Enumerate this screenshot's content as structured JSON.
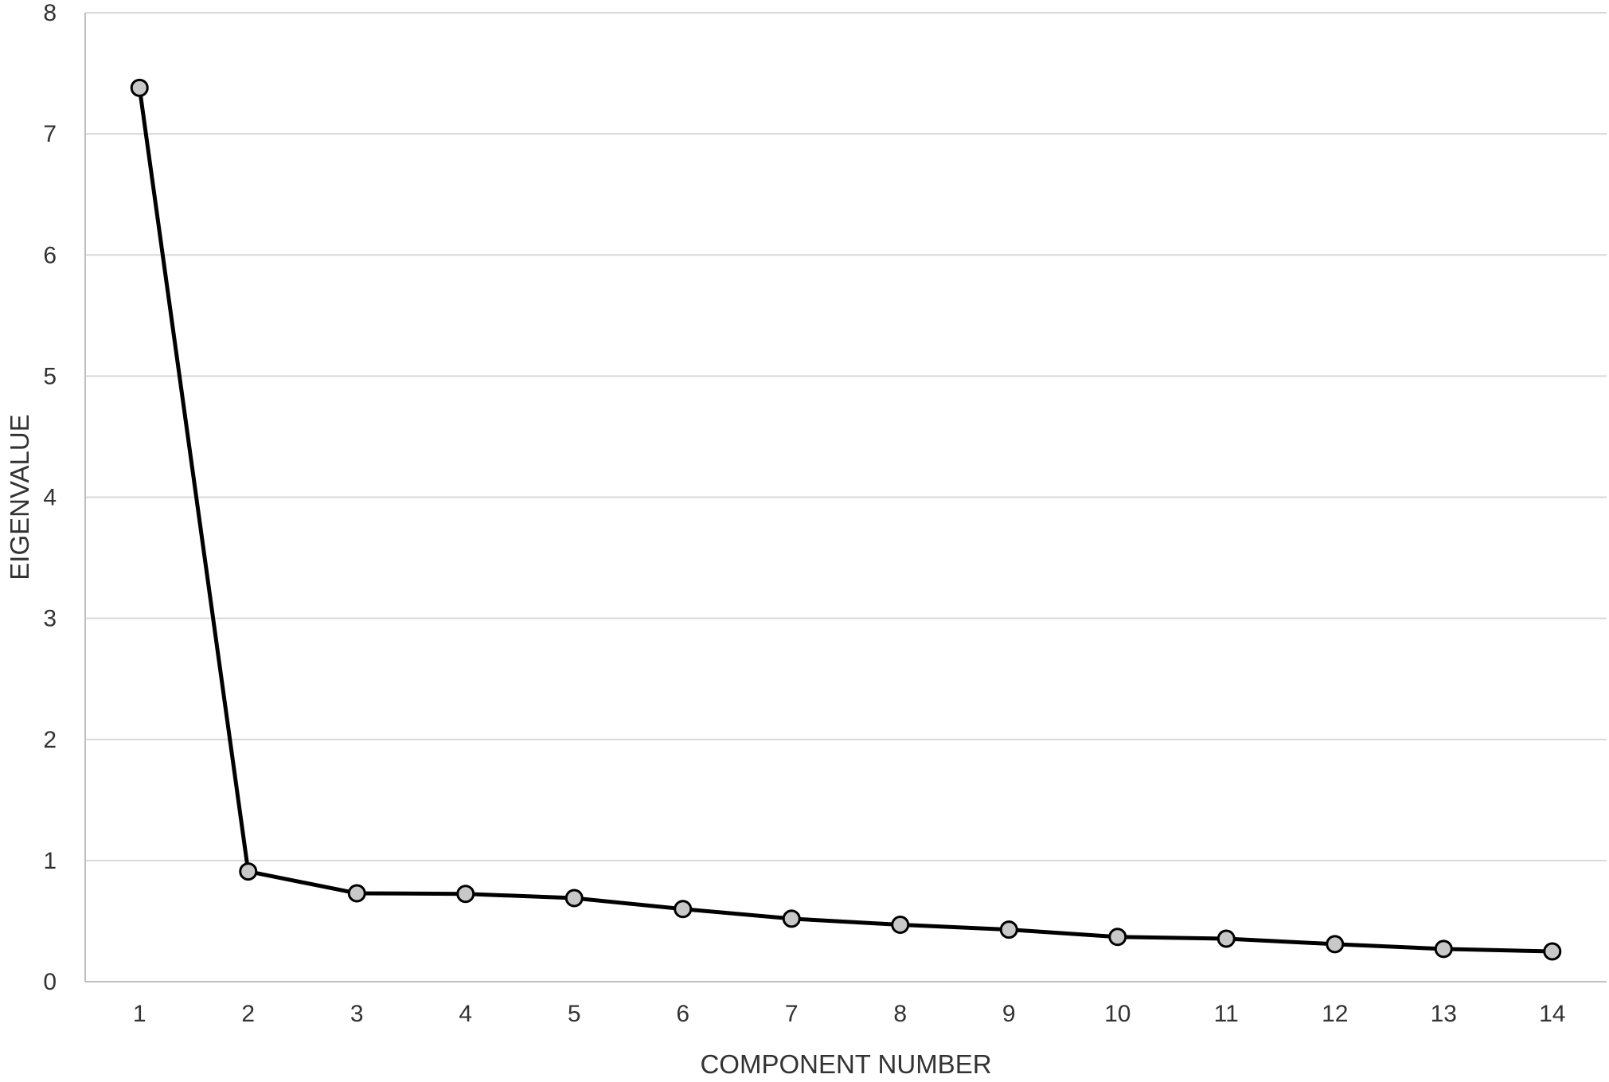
{
  "chart_data": {
    "type": "line",
    "xlabel": "COMPONENT NUMBER",
    "ylabel": "EIGENVALUE",
    "ylim": [
      0,
      8
    ],
    "yticks": [
      0,
      1,
      2,
      3,
      4,
      5,
      6,
      7,
      8
    ],
    "grid": true,
    "categories": [
      "1",
      "2",
      "3",
      "4",
      "5",
      "6",
      "7",
      "8",
      "9",
      "10",
      "11",
      "12",
      "13",
      "14"
    ],
    "series": [
      {
        "values": [
          7.38,
          0.91,
          0.73,
          0.725,
          0.69,
          0.6,
          0.52,
          0.47,
          0.43,
          0.37,
          0.355,
          0.31,
          0.27,
          0.25
        ]
      }
    ],
    "colors": {
      "line": "#000000",
      "marker_fill": "#c8c8c8",
      "marker_stroke": "#000000",
      "grid": "#d9d9d9",
      "axis": "#bfbfbf",
      "text": "#333333"
    }
  }
}
